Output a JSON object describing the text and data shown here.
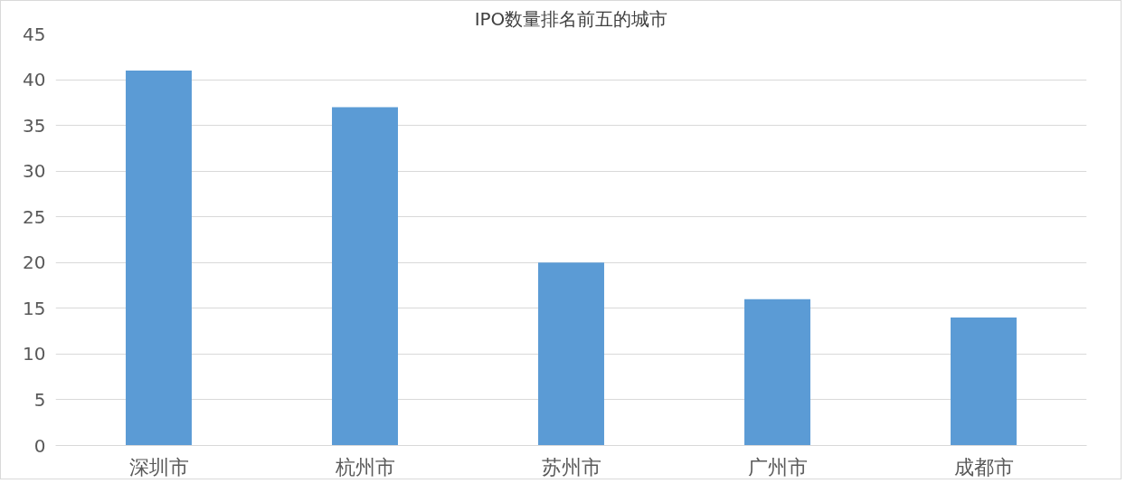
{
  "chart_data": {
    "type": "bar",
    "title": "IPO数量排名前五的城市",
    "categories": [
      "深圳市",
      "杭州市",
      "苏州市",
      "广州市",
      "成都市"
    ],
    "values": [
      41,
      37,
      20,
      16,
      14
    ],
    "color": "#5b9bd5",
    "ylim": [
      0,
      45
    ],
    "yticks": [
      0,
      5,
      10,
      15,
      20,
      25,
      30,
      35,
      40,
      45
    ],
    "grid": "y"
  }
}
